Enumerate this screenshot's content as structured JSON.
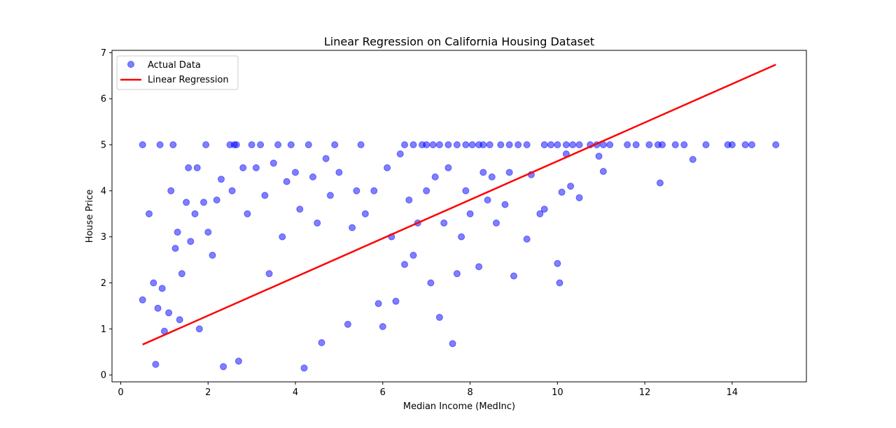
{
  "chart_data": {
    "type": "scatter",
    "title": "Linear Regression on California Housing Dataset",
    "xlabel": "Median Income (MedInc)",
    "ylabel": "House Price",
    "xlim": [
      -0.2,
      15.7
    ],
    "ylim": [
      -0.15,
      7.05
    ],
    "xticks": [
      0,
      2,
      4,
      6,
      8,
      10,
      12,
      14
    ],
    "yticks": [
      0,
      1,
      2,
      3,
      4,
      5,
      6,
      7
    ],
    "grid": false,
    "legend_position": "upper-left",
    "series": [
      {
        "name": "Actual Data",
        "kind": "scatter",
        "color": "#0000ff",
        "opacity": 0.5,
        "points": [
          [
            0.5,
            1.63
          ],
          [
            0.5,
            5.0
          ],
          [
            0.65,
            3.5
          ],
          [
            0.75,
            2.0
          ],
          [
            0.8,
            0.23
          ],
          [
            0.85,
            1.45
          ],
          [
            0.9,
            5.0
          ],
          [
            0.95,
            1.88
          ],
          [
            1.0,
            0.95
          ],
          [
            1.1,
            1.35
          ],
          [
            1.15,
            4.0
          ],
          [
            1.2,
            5.0
          ],
          [
            1.25,
            2.75
          ],
          [
            1.3,
            3.1
          ],
          [
            1.35,
            1.2
          ],
          [
            1.4,
            2.2
          ],
          [
            1.5,
            3.75
          ],
          [
            1.55,
            4.5
          ],
          [
            1.6,
            2.9
          ],
          [
            1.7,
            3.5
          ],
          [
            1.75,
            4.5
          ],
          [
            1.8,
            1.0
          ],
          [
            1.9,
            3.75
          ],
          [
            1.95,
            5.0
          ],
          [
            2.0,
            3.1
          ],
          [
            2.1,
            2.6
          ],
          [
            2.2,
            3.8
          ],
          [
            2.3,
            4.25
          ],
          [
            2.35,
            0.18
          ],
          [
            2.5,
            5.0
          ],
          [
            2.55,
            4.0
          ],
          [
            2.6,
            5.0
          ],
          [
            2.65,
            5.0
          ],
          [
            2.7,
            0.3
          ],
          [
            2.8,
            4.5
          ],
          [
            2.9,
            3.5
          ],
          [
            3.0,
            5.0
          ],
          [
            3.1,
            4.5
          ],
          [
            3.2,
            5.0
          ],
          [
            3.3,
            3.9
          ],
          [
            3.4,
            2.2
          ],
          [
            3.5,
            4.6
          ],
          [
            3.6,
            5.0
          ],
          [
            3.7,
            3.0
          ],
          [
            3.8,
            4.2
          ],
          [
            3.9,
            5.0
          ],
          [
            4.0,
            4.4
          ],
          [
            4.1,
            3.6
          ],
          [
            4.2,
            0.15
          ],
          [
            4.3,
            5.0
          ],
          [
            4.4,
            4.3
          ],
          [
            4.5,
            3.3
          ],
          [
            4.6,
            0.7
          ],
          [
            4.7,
            4.7
          ],
          [
            4.8,
            3.9
          ],
          [
            4.9,
            5.0
          ],
          [
            5.0,
            4.4
          ],
          [
            5.2,
            1.1
          ],
          [
            5.3,
            3.2
          ],
          [
            5.4,
            4.0
          ],
          [
            5.5,
            5.0
          ],
          [
            5.6,
            3.5
          ],
          [
            5.8,
            4.0
          ],
          [
            5.9,
            1.55
          ],
          [
            6.0,
            1.05
          ],
          [
            6.1,
            4.5
          ],
          [
            6.2,
            3.0
          ],
          [
            6.3,
            1.6
          ],
          [
            6.4,
            4.8
          ],
          [
            6.5,
            2.4
          ],
          [
            6.6,
            3.8
          ],
          [
            6.7,
            2.6
          ],
          [
            6.8,
            3.3
          ],
          [
            7.0,
            4.0
          ],
          [
            7.1,
            2.0
          ],
          [
            7.2,
            4.3
          ],
          [
            7.3,
            1.25
          ],
          [
            7.4,
            3.3
          ],
          [
            7.5,
            4.5
          ],
          [
            7.6,
            0.68
          ],
          [
            7.7,
            2.2
          ],
          [
            7.8,
            3.0
          ],
          [
            7.9,
            4.0
          ],
          [
            8.0,
            3.5
          ],
          [
            8.2,
            2.35
          ],
          [
            8.3,
            4.4
          ],
          [
            8.4,
            3.8
          ],
          [
            8.5,
            4.3
          ],
          [
            8.6,
            3.3
          ],
          [
            8.8,
            3.7
          ],
          [
            8.9,
            4.4
          ],
          [
            9.0,
            2.15
          ],
          [
            9.3,
            2.95
          ],
          [
            9.4,
            4.35
          ],
          [
            9.6,
            3.5
          ],
          [
            9.7,
            3.6
          ],
          [
            10.0,
            2.42
          ],
          [
            10.05,
            2.0
          ],
          [
            10.1,
            3.97
          ],
          [
            10.2,
            4.8
          ],
          [
            10.3,
            4.1
          ],
          [
            10.5,
            3.85
          ],
          [
            10.95,
            4.75
          ],
          [
            11.05,
            4.42
          ],
          [
            12.35,
            4.17
          ],
          [
            13.1,
            4.68
          ],
          [
            6.5,
            5.0
          ],
          [
            6.7,
            5.0
          ],
          [
            6.9,
            5.0
          ],
          [
            7.0,
            5.0
          ],
          [
            7.15,
            5.0
          ],
          [
            7.3,
            5.0
          ],
          [
            7.5,
            5.0
          ],
          [
            7.7,
            5.0
          ],
          [
            7.9,
            5.0
          ],
          [
            8.05,
            5.0
          ],
          [
            8.2,
            5.0
          ],
          [
            8.3,
            5.0
          ],
          [
            8.45,
            5.0
          ],
          [
            8.7,
            5.0
          ],
          [
            8.9,
            5.0
          ],
          [
            9.1,
            5.0
          ],
          [
            9.3,
            5.0
          ],
          [
            9.7,
            5.0
          ],
          [
            9.85,
            5.0
          ],
          [
            10.0,
            5.0
          ],
          [
            10.2,
            5.0
          ],
          [
            10.35,
            5.0
          ],
          [
            10.5,
            5.0
          ],
          [
            10.75,
            5.0
          ],
          [
            10.9,
            5.0
          ],
          [
            11.05,
            5.0
          ],
          [
            11.2,
            5.0
          ],
          [
            11.6,
            5.0
          ],
          [
            11.8,
            5.0
          ],
          [
            12.1,
            5.0
          ],
          [
            12.3,
            5.0
          ],
          [
            12.4,
            5.0
          ],
          [
            12.7,
            5.0
          ],
          [
            12.9,
            5.0
          ],
          [
            13.4,
            5.0
          ],
          [
            13.9,
            5.0
          ],
          [
            14.0,
            5.0
          ],
          [
            14.3,
            5.0
          ],
          [
            14.45,
            5.0
          ],
          [
            15.0,
            5.0
          ]
        ]
      },
      {
        "name": "Linear Regression",
        "kind": "line",
        "color": "#ff0000",
        "x": [
          0.5,
          15.0
        ],
        "y": [
          0.66,
          6.74
        ]
      }
    ]
  }
}
